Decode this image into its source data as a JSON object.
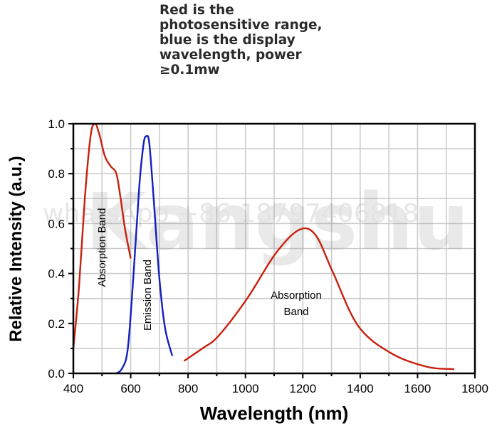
{
  "caption": "Red is the photosensitive range, blue is the display wavelength, power ≥0.1mw",
  "watermark": {
    "large": "Kangshu",
    "small": "whatsApp +86 18797406818"
  },
  "chart_data": {
    "type": "line",
    "title": "",
    "xlabel": "Wavelength (nm)",
    "ylabel": "Relative Intensity (a.u.)",
    "xlim": [
      400,
      1800
    ],
    "ylim": [
      0,
      1.0
    ],
    "xticks": [
      "400",
      "600",
      "800",
      "1000",
      "1200",
      "1400",
      "1600",
      "1800"
    ],
    "yticks": [
      "0.0",
      "0.2",
      "0.4",
      "0.6",
      "0.8",
      "1.0"
    ],
    "grid": true,
    "series": [
      {
        "label": "Absorption Band",
        "color": "#c8200e",
        "x": [
          400,
          420,
          440,
          460,
          475,
          490,
          510,
          530,
          550,
          565,
          580,
          600
        ],
        "y": [
          0.1,
          0.35,
          0.7,
          0.95,
          1.0,
          0.96,
          0.87,
          0.83,
          0.8,
          0.7,
          0.58,
          0.46
        ]
      },
      {
        "label": "Emission Band",
        "color": "#1020c0",
        "x": [
          550,
          570,
          590,
          610,
          630,
          645,
          655,
          665,
          680,
          700,
          720,
          745
        ],
        "y": [
          0.0,
          0.02,
          0.1,
          0.4,
          0.75,
          0.92,
          0.95,
          0.92,
          0.7,
          0.38,
          0.18,
          0.07
        ]
      },
      {
        "label": "Absorption Band",
        "color": "#c8200e",
        "x": [
          786,
          850,
          906,
          1006,
          1105,
          1187,
          1244,
          1303,
          1393,
          1509,
          1634,
          1728
        ],
        "y": [
          0.05,
          0.1,
          0.15,
          0.3,
          0.48,
          0.575,
          0.555,
          0.41,
          0.19,
          0.08,
          0.026,
          0.017
        ]
      }
    ]
  }
}
